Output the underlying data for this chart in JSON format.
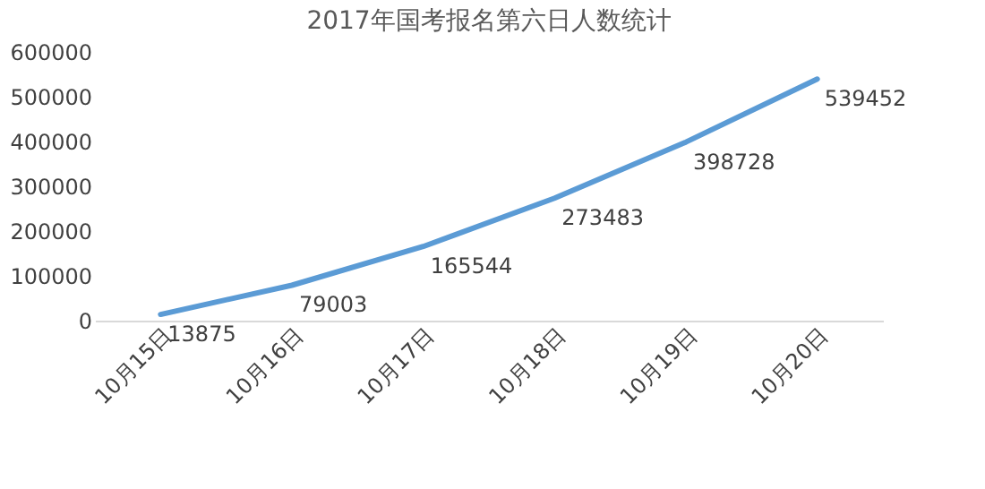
{
  "chart_data": {
    "type": "line",
    "title": "2017年国考报名第六日人数统计",
    "categories": [
      "10月15日",
      "10月16日",
      "10月17日",
      "10月18日",
      "10月19日",
      "10月20日"
    ],
    "series": [
      {
        "color": "#5b9bd5",
        "values": [
          13875,
          79003,
          165544,
          273483,
          398728,
          539452
        ]
      }
    ],
    "ylim": [
      0,
      600000
    ],
    "yticks": [
      0,
      100000,
      200000,
      300000,
      400000,
      500000,
      600000
    ],
    "grid": false,
    "data_labels": true,
    "marker": "none",
    "line_style": "solid"
  }
}
